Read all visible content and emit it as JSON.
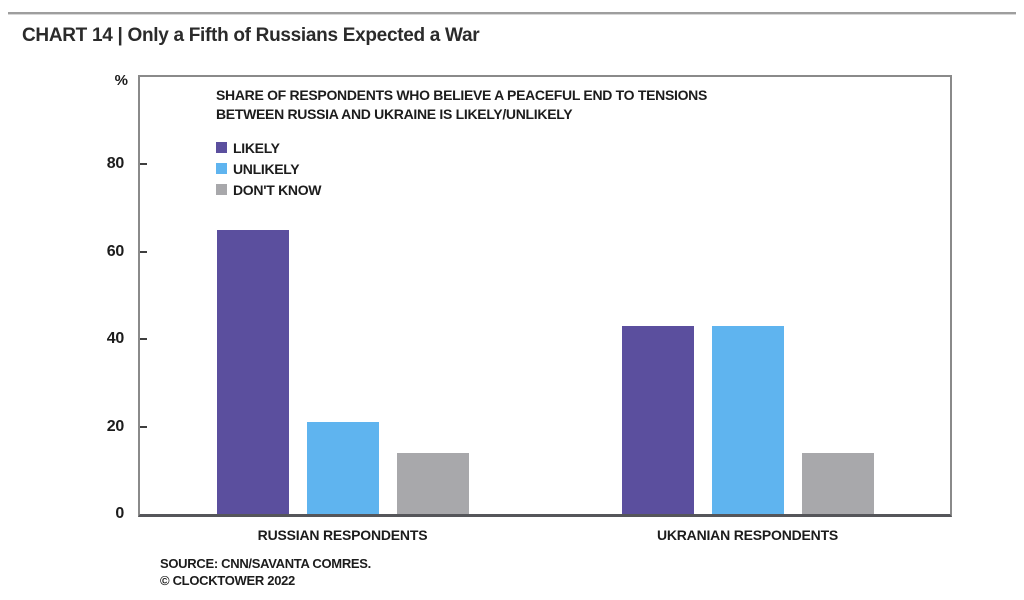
{
  "header": {
    "title": "CHART 14 | Only a Fifth of Russians Expected a War"
  },
  "chart_data": {
    "type": "bar",
    "title": "CHART 14 | Only a Fifth of Russians Expected a War",
    "subtitle_lines": [
      "SHARE OF RESPONDENTS WHO BELIEVE A PEACEFUL END TO TENSIONS",
      "BETWEEN RUSSIA AND UKRAINE IS LIKELY/UNLIKELY"
    ],
    "categories": [
      "RUSSIAN RESPONDENTS",
      "UKRANIAN RESPONDENTS"
    ],
    "series": [
      {
        "name": "LIKELY",
        "color": "#5b4f9e",
        "values": [
          65,
          43
        ]
      },
      {
        "name": "UNLIKELY",
        "color": "#5fb4ef",
        "values": [
          21,
          43
        ]
      },
      {
        "name": "DON'T KNOW",
        "color": "#a8a8ab",
        "values": [
          14,
          14
        ]
      }
    ],
    "ylabel": "%",
    "yticks": [
      0,
      20,
      40,
      60,
      80
    ],
    "ylim": [
      0,
      100
    ],
    "grid": false,
    "legend_position": "top-left-inside",
    "box_border_color": "#8a8a8a",
    "baseline_color": "#55565a"
  },
  "footer": {
    "source": "SOURCE: CNN/SAVANTA COMRES.",
    "copyright": "© CLOCKTOWER 2022"
  }
}
